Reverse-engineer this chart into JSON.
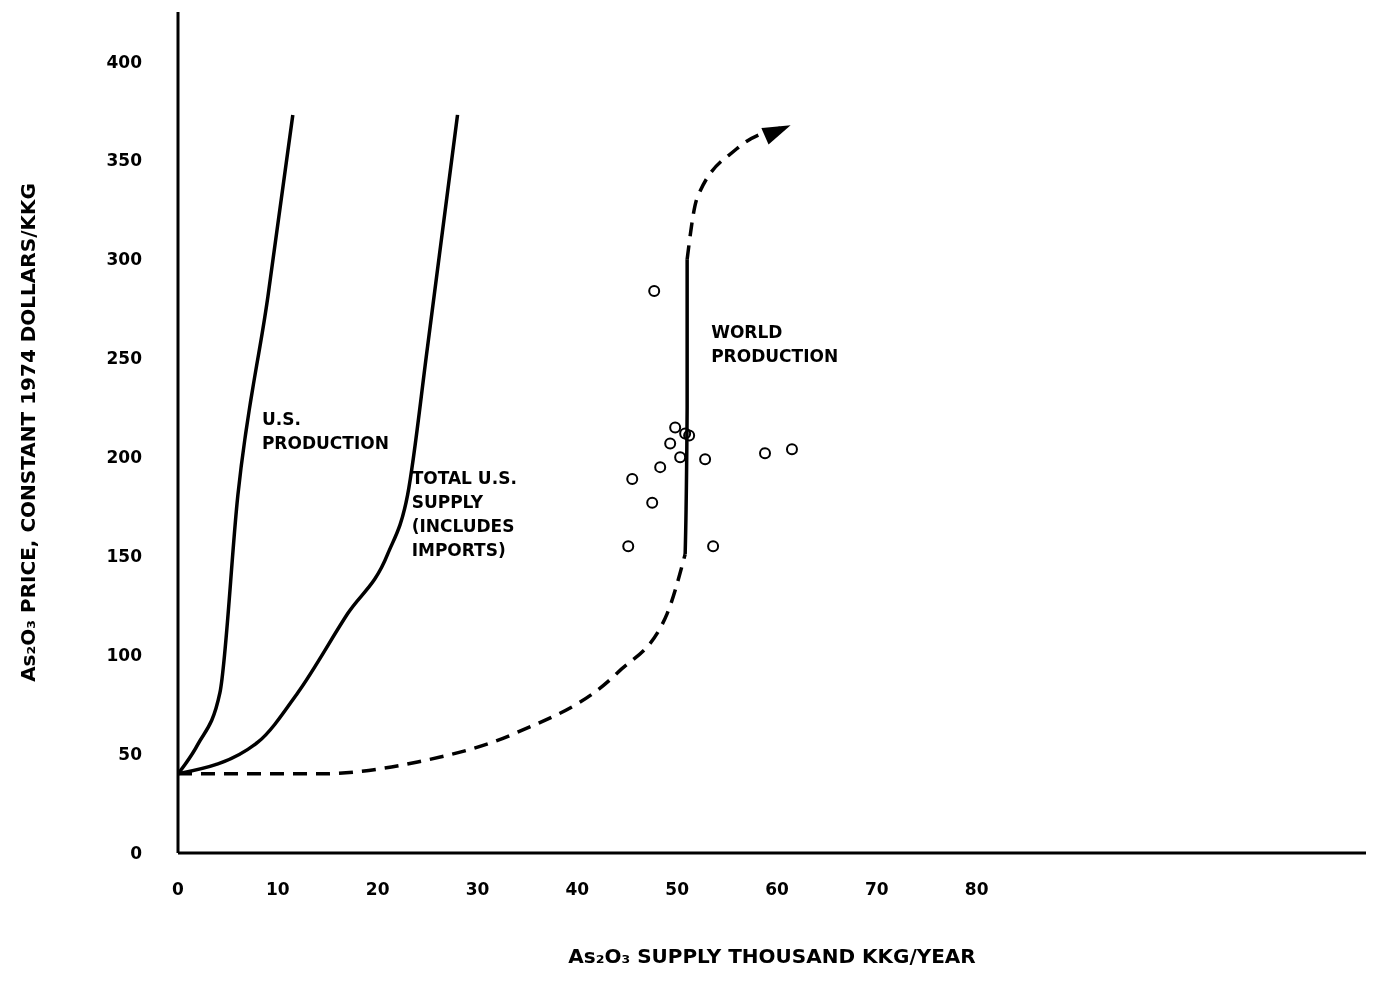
{
  "chart_data": {
    "type": "line",
    "xlabel": "As₂O₃ SUPPLY THOUSAND KKG/YEAR",
    "ylabel": "As₂O₃ PRICE, CONSTANT 1974 DOLLARS/KKG",
    "xlim": [
      0,
      119
    ],
    "xticks": [
      0,
      10,
      20,
      30,
      40,
      50,
      60,
      70,
      80
    ],
    "ylim": [
      0,
      425
    ],
    "yticks": [
      0,
      50,
      100,
      150,
      200,
      250,
      300,
      350,
      400
    ],
    "grid": false,
    "legend": false,
    "series": [
      {
        "name": "U.S. PRODUCTION",
        "color": "#000000",
        "line_style": "solid",
        "marker": "none",
        "x": [
          0,
          2,
          4.2,
          6,
          9,
          11.5
        ],
        "values": [
          40,
          55,
          81,
          181,
          281,
          373
        ]
      },
      {
        "name": "TOTAL U.S. SUPPLY (INCLUDES IMPORTS)",
        "color": "#000000",
        "line_style": "solid",
        "marker": "none",
        "x": [
          0,
          8,
          12,
          17,
          21,
          23,
          25,
          28
        ],
        "values": [
          40,
          56,
          81,
          121,
          151,
          181,
          256,
          373
        ]
      },
      {
        "color": "#000000",
        "line_style": "dashed",
        "marker": "none",
        "x": [
          0,
          14,
          24,
          34,
          44,
          49,
          50.8
        ],
        "values": [
          40,
          40,
          46,
          61,
          91,
          121,
          151
        ]
      },
      {
        "name": "WORLD PRODUCTION",
        "color": "#000000",
        "line_style": "solid",
        "marker": "none",
        "x": [
          50.8,
          51,
          51
        ],
        "values": [
          151,
          225,
          300
        ]
      },
      {
        "color": "#000000",
        "line_style": "dashed",
        "marker": "none",
        "x": [
          51,
          52,
          56,
          61
        ],
        "values": [
          300,
          331,
          356,
          367
        ]
      },
      {
        "type": "scatter",
        "color": "#000000",
        "marker": "circle",
        "x": [
          45.1,
          45.5,
          47.7,
          47.5,
          48.3,
          49.3,
          49.8,
          50.3,
          50.8,
          51.2,
          52.8,
          53.6,
          58.8,
          61.5
        ],
        "values": [
          155,
          189,
          284,
          177,
          195,
          207,
          215,
          200,
          212,
          211,
          199,
          155,
          202,
          204
        ]
      }
    ]
  }
}
